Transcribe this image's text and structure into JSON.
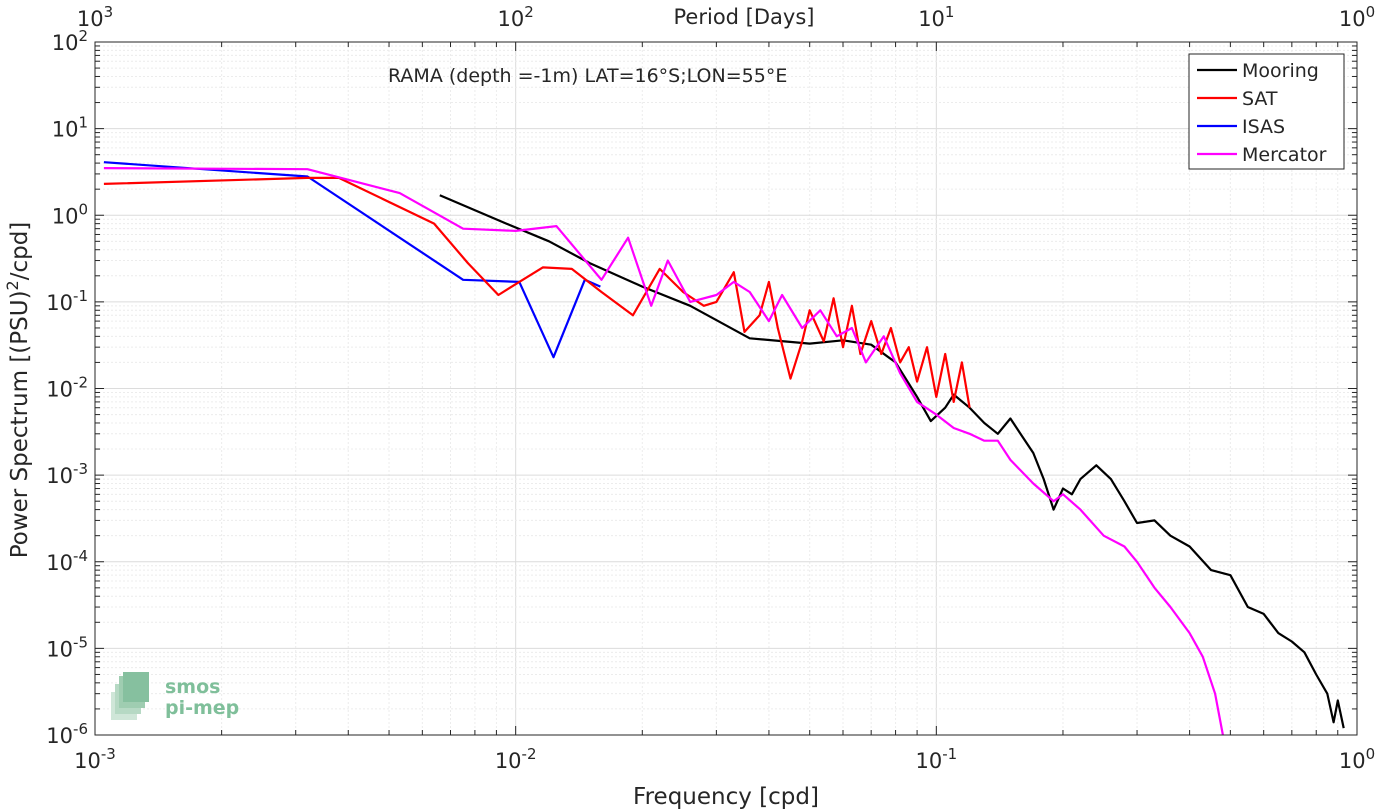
{
  "chart_data": {
    "type": "line",
    "title": "RAMA (depth =-1m) LAT=16°S;LON=55°E",
    "xlabel": "Frequency [cpd]",
    "ylabel": "Power Spectrum [(PSU)²/cpd]",
    "top_axis_label": "Period [Days]",
    "x_scale": "log",
    "y_scale": "log",
    "xlim": [
      0.001,
      1
    ],
    "ylim": [
      1e-06,
      100
    ],
    "grid": true,
    "legend_position": "top-right",
    "x_ticks": [
      {
        "value": 0.001,
        "base": "10",
        "exp": "-3"
      },
      {
        "value": 0.01,
        "base": "10",
        "exp": "-2"
      },
      {
        "value": 0.1,
        "base": "10",
        "exp": "-1"
      },
      {
        "value": 1,
        "base": "10",
        "exp": "0"
      }
    ],
    "top_ticks": [
      {
        "value": 0.001,
        "base": "10",
        "exp": "3"
      },
      {
        "value": 0.01,
        "base": "10",
        "exp": "2"
      },
      {
        "value": 0.1,
        "base": "10",
        "exp": "1"
      },
      {
        "value": 1,
        "base": "10",
        "exp": "0"
      }
    ],
    "y_ticks": [
      {
        "value": 100,
        "base": "10",
        "exp": "2"
      },
      {
        "value": 10,
        "base": "10",
        "exp": "1"
      },
      {
        "value": 1,
        "base": "10",
        "exp": "0"
      },
      {
        "value": 0.1,
        "base": "10",
        "exp": "-1"
      },
      {
        "value": 0.01,
        "base": "10",
        "exp": "-2"
      },
      {
        "value": 0.001,
        "base": "10",
        "exp": "-3"
      },
      {
        "value": 0.0001,
        "base": "10",
        "exp": "-4"
      },
      {
        "value": 1e-05,
        "base": "10",
        "exp": "-5"
      },
      {
        "value": 1e-06,
        "base": "10",
        "exp": "-6"
      }
    ],
    "series": [
      {
        "name": "Mooring",
        "color": "#000000",
        "x": [
          0.0066,
          0.0095,
          0.012,
          0.015,
          0.02,
          0.026,
          0.036,
          0.05,
          0.06,
          0.07,
          0.08,
          0.09,
          0.097,
          0.105,
          0.11,
          0.12,
          0.13,
          0.14,
          0.15,
          0.16,
          0.17,
          0.18,
          0.19,
          0.2,
          0.21,
          0.22,
          0.24,
          0.26,
          0.28,
          0.3,
          0.33,
          0.36,
          0.4,
          0.45,
          0.5,
          0.55,
          0.6,
          0.65,
          0.7,
          0.75,
          0.8,
          0.85,
          0.88,
          0.9,
          0.93
        ],
        "y": [
          1.7,
          0.8,
          0.5,
          0.28,
          0.15,
          0.09,
          0.038,
          0.033,
          0.036,
          0.032,
          0.02,
          0.008,
          0.0042,
          0.006,
          0.0085,
          0.006,
          0.004,
          0.003,
          0.0045,
          0.0028,
          0.0018,
          0.0009,
          0.0004,
          0.0007,
          0.0006,
          0.0009,
          0.0013,
          0.0009,
          0.0005,
          0.00028,
          0.0003,
          0.0002,
          0.00015,
          8e-05,
          7e-05,
          3e-05,
          2.5e-05,
          1.5e-05,
          1.2e-05,
          9e-06,
          5e-06,
          3e-06,
          1.4e-06,
          2.5e-06,
          1.2e-06
        ]
      },
      {
        "name": "SAT",
        "color": "#ff0000",
        "x": [
          0.00105,
          0.0032,
          0.0038,
          0.0064,
          0.0077,
          0.0091,
          0.0102,
          0.0116,
          0.0136,
          0.016,
          0.019,
          0.022,
          0.025,
          0.028,
          0.03,
          0.033,
          0.035,
          0.038,
          0.04,
          0.042,
          0.045,
          0.048,
          0.05,
          0.054,
          0.057,
          0.06,
          0.063,
          0.066,
          0.07,
          0.074,
          0.078,
          0.082,
          0.086,
          0.09,
          0.095,
          0.1,
          0.105,
          0.11,
          0.115,
          0.12
        ],
        "y": [
          2.3,
          2.7,
          2.7,
          0.8,
          0.28,
          0.12,
          0.17,
          0.25,
          0.24,
          0.13,
          0.07,
          0.24,
          0.13,
          0.09,
          0.1,
          0.22,
          0.045,
          0.07,
          0.17,
          0.05,
          0.013,
          0.035,
          0.08,
          0.035,
          0.11,
          0.03,
          0.09,
          0.025,
          0.06,
          0.025,
          0.05,
          0.02,
          0.03,
          0.012,
          0.03,
          0.008,
          0.025,
          0.007,
          0.02,
          0.006
        ]
      },
      {
        "name": "ISAS",
        "color": "#0000ff",
        "x": [
          0.00105,
          0.0032,
          0.0075,
          0.0102,
          0.0123,
          0.0146,
          0.0159
        ],
        "y": [
          4.1,
          2.8,
          0.18,
          0.17,
          0.023,
          0.18,
          0.15
        ]
      },
      {
        "name": "Mercator",
        "color": "#ff00ff",
        "x": [
          0.00105,
          0.0032,
          0.0053,
          0.0075,
          0.01,
          0.0125,
          0.016,
          0.0185,
          0.021,
          0.023,
          0.026,
          0.03,
          0.033,
          0.036,
          0.04,
          0.043,
          0.048,
          0.053,
          0.058,
          0.063,
          0.068,
          0.075,
          0.082,
          0.09,
          0.1,
          0.11,
          0.12,
          0.13,
          0.14,
          0.15,
          0.17,
          0.19,
          0.2,
          0.22,
          0.25,
          0.28,
          0.3,
          0.33,
          0.36,
          0.4,
          0.43,
          0.46,
          0.48
        ],
        "y": [
          3.5,
          3.4,
          1.8,
          0.7,
          0.66,
          0.75,
          0.18,
          0.55,
          0.09,
          0.3,
          0.1,
          0.12,
          0.17,
          0.13,
          0.06,
          0.12,
          0.05,
          0.08,
          0.04,
          0.05,
          0.02,
          0.04,
          0.015,
          0.007,
          0.005,
          0.0035,
          0.003,
          0.0025,
          0.0025,
          0.0015,
          0.0008,
          0.0005,
          0.0006,
          0.0004,
          0.0002,
          0.00015,
          0.0001,
          5e-05,
          3e-05,
          1.5e-05,
          8e-06,
          3e-06,
          1e-06
        ]
      }
    ]
  },
  "watermark": {
    "line1": "smos",
    "line2": "pi-mep",
    "color": "#7fbf9a"
  }
}
